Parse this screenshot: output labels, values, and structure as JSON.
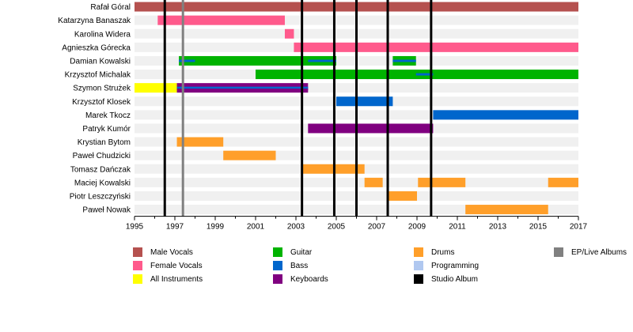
{
  "chart_data": {
    "type": "timeline",
    "title": "",
    "xlabel": "",
    "ylabel": "",
    "xlim": [
      1995,
      2017
    ],
    "x_ticks": [
      "1995",
      "1997",
      "1999",
      "2001",
      "2003",
      "2005",
      "2007",
      "2009",
      "2011",
      "2013",
      "2015",
      "2017"
    ],
    "members": [
      {
        "name": "Rafał Góral",
        "spans": [
          {
            "role": "Male Vocals",
            "start": 1995.0,
            "end": 2017.0
          }
        ]
      },
      {
        "name": "Katarzyna Banaszak",
        "spans": [
          {
            "role": "Female Vocals",
            "start": 1996.15,
            "end": 2002.45
          }
        ]
      },
      {
        "name": "Karolina Widera",
        "spans": [
          {
            "role": "Female Vocals",
            "start": 2002.45,
            "end": 2002.9
          }
        ]
      },
      {
        "name": "Agnieszka Górecka",
        "spans": [
          {
            "role": "Female Vocals",
            "start": 2002.9,
            "end": 2017.0
          }
        ]
      },
      {
        "name": "Damian Kowalski",
        "spans": [
          {
            "role": "Guitar",
            "start": 1997.2,
            "end": 2005.0
          },
          {
            "role": "Guitar",
            "start": 2007.8,
            "end": 2008.95
          },
          {
            "role": "Bass",
            "start": 1997.2,
            "end": 1998.0,
            "overlay": true
          },
          {
            "role": "Bass",
            "start": 2003.6,
            "end": 2005.0,
            "overlay": true
          },
          {
            "role": "Bass",
            "start": 2007.8,
            "end": 2008.95,
            "overlay": true
          }
        ]
      },
      {
        "name": "Krzysztof Michalak",
        "spans": [
          {
            "role": "Guitar",
            "start": 2001.0,
            "end": 2017.0
          },
          {
            "role": "Bass",
            "start": 2008.95,
            "end": 2009.8,
            "overlay": true
          }
        ]
      },
      {
        "name": "Szymon Strużek",
        "spans": [
          {
            "role": "All Instruments",
            "start": 1995.0,
            "end": 1997.1
          },
          {
            "role": "Keyboards",
            "start": 1997.1,
            "end": 2003.6
          },
          {
            "role": "Bass",
            "start": 1997.1,
            "end": 2003.6,
            "overlay": true
          },
          {
            "role": "Keyboards",
            "start": 1997.1,
            "end": 2003.6,
            "overlay": true,
            "thin": true
          }
        ]
      },
      {
        "name": "Krzysztof Klosek",
        "spans": [
          {
            "role": "Bass",
            "start": 2005.0,
            "end": 2007.8
          }
        ]
      },
      {
        "name": "Marek Tkocz",
        "spans": [
          {
            "role": "Bass",
            "start": 2009.8,
            "end": 2017.0
          }
        ]
      },
      {
        "name": "Patryk Kumór",
        "spans": [
          {
            "role": "Keyboards",
            "start": 2003.6,
            "end": 2009.8
          }
        ]
      },
      {
        "name": "Krystian Bytom",
        "spans": [
          {
            "role": "Drums",
            "start": 1997.1,
            "end": 1999.4
          }
        ]
      },
      {
        "name": "Paweł Chudzicki",
        "spans": [
          {
            "role": "Drums",
            "start": 1999.4,
            "end": 2002.0
          }
        ]
      },
      {
        "name": "Tomasz Dańczak",
        "spans": [
          {
            "role": "Drums",
            "start": 2003.3,
            "end": 2006.4
          }
        ]
      },
      {
        "name": "Maciej Kowalski",
        "spans": [
          {
            "role": "Drums",
            "start": 2006.4,
            "end": 2007.3
          },
          {
            "role": "Drums",
            "start": 2009.05,
            "end": 2011.4
          },
          {
            "role": "Drums",
            "start": 2015.5,
            "end": 2017.0
          }
        ]
      },
      {
        "name": "Piotr Leszczyński",
        "spans": [
          {
            "role": "Drums",
            "start": 2007.6,
            "end": 2009.0
          }
        ]
      },
      {
        "name": "Paweł Nowak",
        "spans": [
          {
            "role": "Drums",
            "start": 2011.4,
            "end": 2015.5
          }
        ]
      }
    ],
    "studio_albums": [
      1996.5,
      2003.3,
      2004.9,
      2006.0,
      2007.55,
      2009.7
    ],
    "ep_live_albums": [
      1997.4
    ],
    "legend": [
      {
        "label": "Male Vocals",
        "color": "#b5514f"
      },
      {
        "label": "Female Vocals",
        "color": "#ff5a8c"
      },
      {
        "label": "All Instruments",
        "color": "#ffff00"
      },
      {
        "label": "Guitar",
        "color": "#00b300"
      },
      {
        "label": "Bass",
        "color": "#0066cc"
      },
      {
        "label": "Keyboards",
        "color": "#800080"
      },
      {
        "label": "Drums",
        "color": "#ff9f2a"
      },
      {
        "label": "Programming",
        "color": "#b0c8f0"
      },
      {
        "label": "Studio Album",
        "color": "#000000"
      },
      {
        "label": "EP/Live Albums",
        "color": "#808080"
      }
    ]
  }
}
